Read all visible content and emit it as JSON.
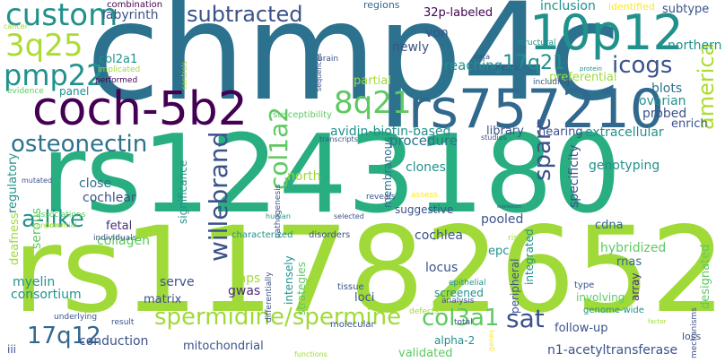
{
  "palette": {
    "dark_purple": "#440154",
    "indigo": "#3b528b",
    "steel_blue": "#2c728e",
    "blue_teal": "#31688e",
    "teal": "#21918c",
    "sea_green": "#28ae80",
    "green": "#5ec962",
    "lime": "#a0da39",
    "yellow_green": "#addc30",
    "yellow": "#fde725",
    "purple_gray": "#472d7b"
  },
  "words": [
    {
      "text": "chmp4c",
      "color": "#2c728e"
    },
    {
      "text": "rs1243180",
      "color": "#28ae80"
    },
    {
      "text": "rs11782652",
      "color": "#a0da39"
    },
    {
      "text": "coch-5b2",
      "color": "#440154"
    },
    {
      "text": "rs757210",
      "color": "#31688e"
    },
    {
      "text": "10p12",
      "color": "#21918c"
    },
    {
      "text": "custom",
      "color": "#21918c"
    },
    {
      "text": "3q25",
      "color": "#addc30"
    },
    {
      "text": "pmp22",
      "color": "#21918c"
    },
    {
      "text": "subtracted",
      "color": "#3b528b"
    },
    {
      "text": "icogs",
      "color": "#3b528b"
    },
    {
      "text": "17q21",
      "color": "#21918c"
    },
    {
      "text": "8q21",
      "color": "#5ec962"
    },
    {
      "text": "osteonectin",
      "color": "#2c728e"
    },
    {
      "text": "willebrand",
      "color": "#3b528b"
    },
    {
      "text": "col1a2",
      "color": "#5ec962"
    },
    {
      "text": "sparc",
      "color": "#3b528b"
    },
    {
      "text": "america",
      "color": "#addc30"
    },
    {
      "text": "a-like",
      "color": "#21918c"
    },
    {
      "text": "spermidine/spermine",
      "color": "#a0da39"
    },
    {
      "text": "17q12",
      "color": "#31688e"
    },
    {
      "text": "col3a1",
      "color": "#5ec962"
    },
    {
      "text": "sat",
      "color": "#3b528b"
    },
    {
      "text": "labyrinth",
      "color": "#3b528b"
    },
    {
      "text": "combination",
      "color": "#440154"
    },
    {
      "text": "regions",
      "color": "#31688e"
    },
    {
      "text": "inclusion",
      "color": "#21918c"
    },
    {
      "text": "identified",
      "color": "#fde725"
    },
    {
      "text": "subtype",
      "color": "#3b528b"
    },
    {
      "text": "northern",
      "color": "#21918c"
    },
    {
      "text": "32p-labeled",
      "color": "#440154"
    },
    {
      "text": "von",
      "color": "#3b528b"
    },
    {
      "text": "newly",
      "color": "#3b528b"
    },
    {
      "text": "reaching",
      "color": "#21918c"
    },
    {
      "text": "preferential",
      "color": "#a0da39"
    },
    {
      "text": "regulatory",
      "color": "#21918c"
    },
    {
      "text": "col2a1",
      "color": "#21918c"
    },
    {
      "text": "implicated",
      "color": "#a0da39"
    },
    {
      "text": "performed",
      "color": "#440154"
    },
    {
      "text": "cancer",
      "color": "#a0da39"
    },
    {
      "text": "evidence",
      "color": "#5ec962"
    },
    {
      "text": "panel",
      "color": "#21918c"
    },
    {
      "text": "partial",
      "color": "#a0da39"
    },
    {
      "text": "blots",
      "color": "#2c728e"
    },
    {
      "text": "ovarian",
      "color": "#21918c"
    },
    {
      "text": "probed",
      "color": "#3b528b"
    },
    {
      "text": "enrich",
      "color": "#3b528b"
    },
    {
      "text": "avidin-biotin-based",
      "color": "#21918c"
    },
    {
      "text": "library",
      "color": "#3b528b"
    },
    {
      "text": "hearing",
      "color": "#3b528b"
    },
    {
      "text": "extracellular",
      "color": "#21918c"
    },
    {
      "text": "procedure",
      "color": "#2c728e"
    },
    {
      "text": "north",
      "color": "#a0da39"
    },
    {
      "text": "close",
      "color": "#2c728e"
    },
    {
      "text": "cochlear",
      "color": "#3b528b"
    },
    {
      "text": "clones",
      "color": "#21918c"
    },
    {
      "text": "membranous",
      "color": "#2c728e"
    },
    {
      "text": "specificity",
      "color": "#3b528b"
    },
    {
      "text": "genotyping",
      "color": "#21918c"
    },
    {
      "text": "designated",
      "color": "#5ec962"
    },
    {
      "text": "pooled",
      "color": "#3b528b"
    },
    {
      "text": "cdna",
      "color": "#31688e"
    },
    {
      "text": "cochlea",
      "color": "#3b528b"
    },
    {
      "text": "epc",
      "color": "#21918c"
    },
    {
      "text": "hybridized",
      "color": "#5ec962"
    },
    {
      "text": "rnas",
      "color": "#31688e"
    },
    {
      "text": "array",
      "color": "#472d7b"
    },
    {
      "text": "fetal",
      "color": "#472d7b"
    },
    {
      "text": "collagen",
      "color": "#5ec962"
    },
    {
      "text": "myelin",
      "color": "#21918c"
    },
    {
      "text": "consortium",
      "color": "#21918c"
    },
    {
      "text": "serve",
      "color": "#3b528b"
    },
    {
      "text": "snps",
      "color": "#a0da39"
    },
    {
      "text": "gwas",
      "color": "#472d7b"
    },
    {
      "text": "matrix",
      "color": "#3b528b"
    },
    {
      "text": "loci",
      "color": "#3b528b"
    },
    {
      "text": "locus",
      "color": "#3b528b"
    },
    {
      "text": "intensely",
      "color": "#21918c"
    },
    {
      "text": "strategies",
      "color": "#5ec962"
    },
    {
      "text": "integrated",
      "color": "#21918c"
    },
    {
      "text": "peripheral",
      "color": "#3b528b"
    },
    {
      "text": "screened",
      "color": "#21918c"
    },
    {
      "text": "alpha-2",
      "color": "#21918c"
    },
    {
      "text": "follow-up",
      "color": "#3b528b"
    },
    {
      "text": "n1-acetyltransferase",
      "color": "#3b528b"
    },
    {
      "text": "mitochondrial",
      "color": "#3b528b"
    },
    {
      "text": "validated",
      "color": "#5ec962"
    },
    {
      "text": "conduction",
      "color": "#3b528b"
    },
    {
      "text": "iii",
      "color": "#3b528b"
    },
    {
      "text": "deafness",
      "color": "#a0da39"
    },
    {
      "text": "serous",
      "color": "#5ec962"
    },
    {
      "text": "significance",
      "color": "#21918c"
    },
    {
      "text": "susceptibility",
      "color": "#5ec962"
    },
    {
      "text": "transcripts",
      "color": "#3b528b"
    },
    {
      "text": "studies",
      "color": "#3b528b"
    },
    {
      "text": "human",
      "color": "#21918c"
    },
    {
      "text": "pathogenesis",
      "color": "#3b528b"
    },
    {
      "text": "reveals",
      "color": "#3b528b"
    },
    {
      "text": "assess",
      "color": "#fde725"
    },
    {
      "text": "suggestive",
      "color": "#3b528b"
    },
    {
      "text": "selected",
      "color": "#3b528b"
    },
    {
      "text": "disorders",
      "color": "#3b528b"
    },
    {
      "text": "characterized",
      "color": "#21918c"
    },
    {
      "text": "individuals",
      "color": "#3b528b"
    },
    {
      "text": "associations",
      "color": "#5ec962"
    },
    {
      "text": "confirm",
      "color": "#a0da39"
    },
    {
      "text": "potential",
      "color": "#a0da39"
    },
    {
      "text": "mutated",
      "color": "#3b528b"
    },
    {
      "text": "result",
      "color": "#3b528b"
    },
    {
      "text": "underlying",
      "color": "#3b528b"
    },
    {
      "text": "differentially",
      "color": "#3b528b"
    },
    {
      "text": "molecular",
      "color": "#3b528b"
    },
    {
      "text": "tissue",
      "color": "#3b528b"
    },
    {
      "text": "defects",
      "color": "#a0da39"
    },
    {
      "text": "analysis",
      "color": "#3b528b"
    },
    {
      "text": "epithelial",
      "color": "#21918c"
    },
    {
      "text": "total",
      "color": "#3b528b"
    },
    {
      "text": "risk",
      "color": "#a0da39"
    },
    {
      "text": "involving",
      "color": "#5ec962"
    },
    {
      "text": "genome-wide",
      "color": "#21918c"
    },
    {
      "text": "type",
      "color": "#3b528b"
    },
    {
      "text": "factor",
      "color": "#a0da39"
    },
    {
      "text": "loss",
      "color": "#3b528b"
    },
    {
      "text": "mechanisms",
      "color": "#3b528b"
    },
    {
      "text": "functions",
      "color": "#a0da39"
    },
    {
      "text": "genes",
      "color": "#fde725"
    },
    {
      "text": "structural",
      "color": "#21918c"
    },
    {
      "text": "neural",
      "color": "#3b528b"
    },
    {
      "text": "including",
      "color": "#3b528b"
    },
    {
      "text": "data",
      "color": "#3b528b"
    },
    {
      "text": "protein",
      "color": "#21918c"
    },
    {
      "text": "brain",
      "color": "#3b528b"
    },
    {
      "text": "sequences",
      "color": "#3b528b"
    },
    {
      "text": "controls",
      "color": "#a0da39"
    },
    {
      "text": "expression",
      "color": "#3b528b"
    }
  ]
}
